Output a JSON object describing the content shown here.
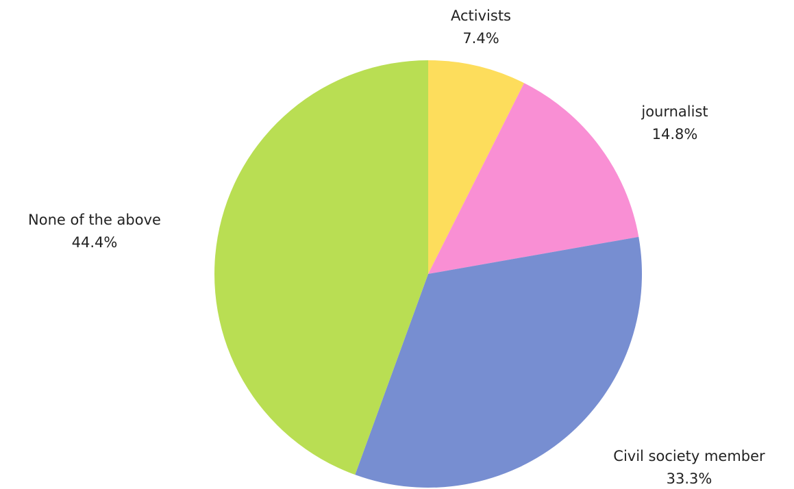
{
  "chart_data": {
    "type": "pie",
    "title": "",
    "slices": [
      {
        "label": "Activists",
        "value": 7.4,
        "display": "7.4%",
        "color": "#FDDD5C"
      },
      {
        "label": "journalist",
        "value": 14.8,
        "display": "14.8%",
        "color": "#F98FD4"
      },
      {
        "label": "Civil society member",
        "value": 33.3,
        "display": "33.3%",
        "color": "#778ED1"
      },
      {
        "label": "None of the above",
        "value": 44.4,
        "display": "44.4%",
        "color": "#B9DE53"
      }
    ],
    "start_angle": "12 o'clock",
    "direction": "clockwise",
    "legend": "none"
  }
}
